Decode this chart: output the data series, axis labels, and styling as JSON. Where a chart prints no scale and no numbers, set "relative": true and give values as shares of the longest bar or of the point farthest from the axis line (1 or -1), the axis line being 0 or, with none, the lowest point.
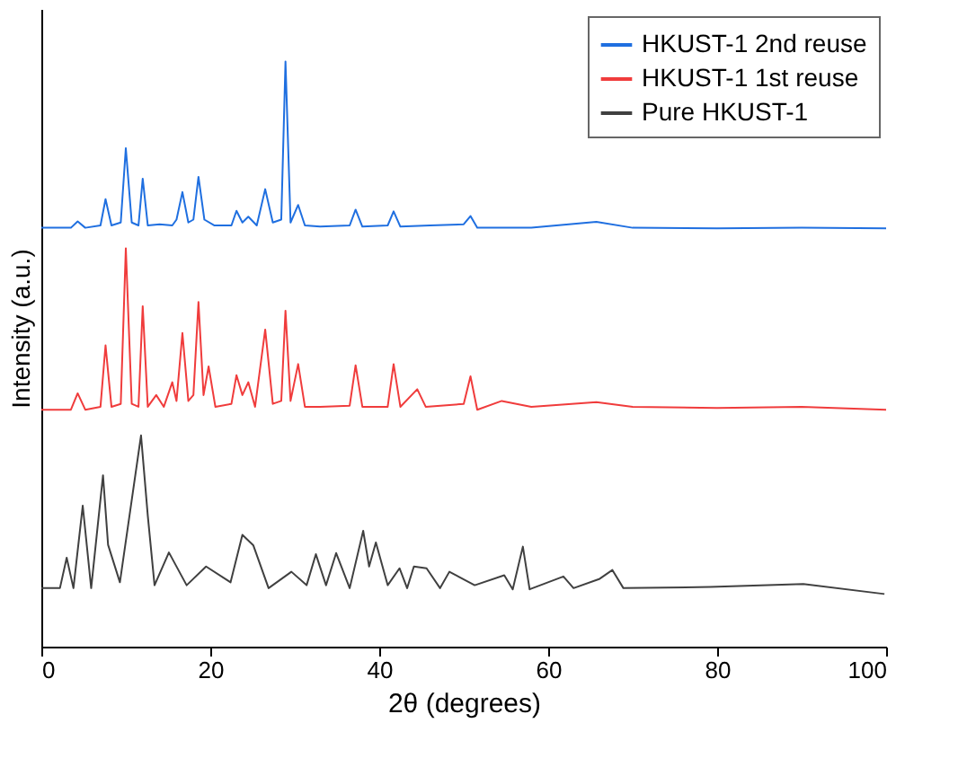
{
  "chart_data": {
    "type": "line",
    "relative": true,
    "xlabel": "2θ (degrees)",
    "ylabel": "Intensity (a.u.)",
    "xlim": [
      0,
      100
    ],
    "xticks": [
      0,
      20,
      40,
      60,
      80,
      100
    ],
    "legend": "top right",
    "grid": false,
    "series": [
      {
        "name": "HKUST-1 2nd reuse",
        "color": "#1f6fe0",
        "x": [
          0,
          3.5,
          4.3,
          5.2,
          7.0,
          7.6,
          8.3,
          9.4,
          10.0,
          10.7,
          11.5,
          12.0,
          12.6,
          14.0,
          15.5,
          16.0,
          16.7,
          17.4,
          18.0,
          18.6,
          19.3,
          20.5,
          22.5,
          23.1,
          23.8,
          24.5,
          25.5,
          26.5,
          27.4,
          28.4,
          28.9,
          29.5,
          30.4,
          31.2,
          33,
          36.5,
          37.2,
          38.0,
          41.0,
          41.7,
          42.5,
          46,
          50.0,
          50.8,
          51.6,
          58,
          65.7,
          70,
          80,
          90,
          100
        ],
        "values": [
          0.716,
          0.716,
          0.727,
          0.716,
          0.72,
          0.765,
          0.72,
          0.725,
          0.852,
          0.725,
          0.72,
          0.8,
          0.72,
          0.722,
          0.72,
          0.73,
          0.777,
          0.725,
          0.73,
          0.803,
          0.73,
          0.72,
          0.72,
          0.745,
          0.725,
          0.735,
          0.72,
          0.782,
          0.725,
          0.73,
          1.0,
          0.725,
          0.755,
          0.72,
          0.718,
          0.72,
          0.747,
          0.718,
          0.72,
          0.744,
          0.718,
          0.72,
          0.722,
          0.736,
          0.716,
          0.716,
          0.726,
          0.716,
          0.715,
          0.716,
          0.715
        ]
      },
      {
        "name": "HKUST-1 1st reuse",
        "color": "#f03c3c",
        "x": [
          0,
          3.5,
          4.3,
          5.2,
          7.0,
          7.6,
          8.3,
          9.4,
          10.0,
          10.7,
          11.5,
          12.0,
          12.6,
          13.6,
          14.5,
          15.5,
          16.0,
          16.7,
          17.4,
          18.0,
          18.6,
          19.2,
          19.8,
          20.6,
          22.5,
          23.1,
          23.8,
          24.5,
          25.3,
          26.5,
          27.4,
          28.4,
          28.9,
          29.5,
          30.4,
          31.2,
          33,
          36.5,
          37.2,
          38.0,
          41.0,
          41.7,
          42.5,
          44.5,
          45.5,
          50.0,
          50.8,
          51.6,
          54.5,
          58,
          65.7,
          70,
          80,
          90,
          100
        ],
        "values": [
          0.405,
          0.405,
          0.433,
          0.405,
          0.41,
          0.515,
          0.41,
          0.415,
          0.681,
          0.415,
          0.41,
          0.582,
          0.41,
          0.43,
          0.41,
          0.452,
          0.42,
          0.536,
          0.42,
          0.43,
          0.589,
          0.43,
          0.479,
          0.41,
          0.415,
          0.464,
          0.43,
          0.452,
          0.41,
          0.542,
          0.415,
          0.42,
          0.574,
          0.42,
          0.483,
          0.41,
          0.41,
          0.412,
          0.481,
          0.41,
          0.41,
          0.483,
          0.41,
          0.44,
          0.41,
          0.415,
          0.462,
          0.405,
          0.42,
          0.41,
          0.418,
          0.41,
          0.408,
          0.41,
          0.405
        ]
      },
      {
        "name": "Pure HKUST-1",
        "color": "#404040",
        "x": [
          0,
          2.2,
          3.0,
          3.8,
          4.9,
          5.9,
          7.3,
          7.9,
          9.3,
          11.8,
          12.6,
          13.4,
          15.1,
          17.2,
          19.5,
          22.4,
          23.8,
          25.1,
          26.9,
          29.6,
          31.4,
          32.5,
          33.7,
          34.9,
          36.5,
          38.1,
          38.8,
          39.6,
          41.0,
          42.4,
          43.3,
          44.1,
          45.6,
          47.2,
          48.3,
          51.3,
          54.8,
          55.8,
          57.0,
          57.8,
          61.8,
          63.0,
          66.1,
          67.6,
          68.9,
          79.2,
          90.2,
          99.8
        ],
        "values": [
          0.1,
          0.1,
          0.152,
          0.1,
          0.241,
          0.1,
          0.293,
          0.174,
          0.11,
          0.361,
          0.224,
          0.105,
          0.161,
          0.105,
          0.137,
          0.11,
          0.191,
          0.173,
          0.1,
          0.128,
          0.105,
          0.158,
          0.105,
          0.16,
          0.1,
          0.198,
          0.137,
          0.178,
          0.105,
          0.134,
          0.1,
          0.137,
          0.134,
          0.1,
          0.128,
          0.105,
          0.122,
          0.098,
          0.171,
          0.098,
          0.12,
          0.1,
          0.116,
          0.131,
          0.1,
          0.102,
          0.107,
          0.09
        ]
      }
    ]
  }
}
